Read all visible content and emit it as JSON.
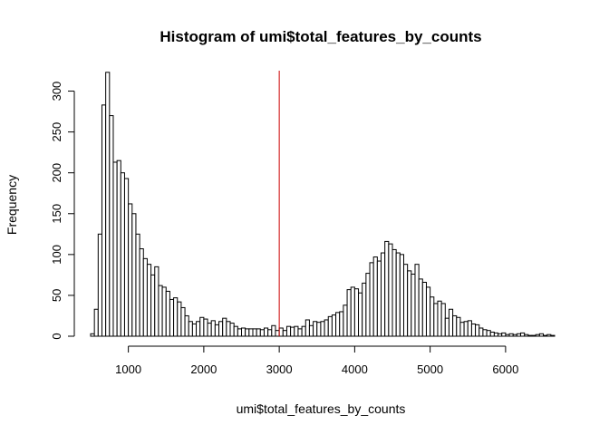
{
  "chart_data": {
    "type": "bar",
    "histogram": true,
    "title": "Histogram of umi$total_features_by_counts",
    "xlabel": "umi$total_features_by_counts",
    "ylabel": "Frequency",
    "xlim": [
      500,
      6650
    ],
    "ylim": [
      0,
      325
    ],
    "bin_start": 500,
    "bin_width": 50,
    "values": [
      3,
      33,
      125,
      283,
      323,
      270,
      213,
      215,
      200,
      193,
      162,
      150,
      125,
      107,
      95,
      88,
      75,
      85,
      62,
      60,
      55,
      45,
      47,
      42,
      35,
      25,
      18,
      15,
      18,
      23,
      21,
      16,
      19,
      14,
      18,
      22,
      18,
      16,
      12,
      9,
      10,
      9,
      9,
      9,
      9,
      8,
      10,
      8,
      13,
      7,
      10,
      7,
      12,
      11,
      12,
      9,
      12,
      20,
      13,
      18,
      17,
      18,
      20,
      24,
      26,
      29,
      30,
      38,
      57,
      60,
      58,
      53,
      65,
      77,
      90,
      97,
      92,
      102,
      116,
      113,
      106,
      102,
      100,
      88,
      80,
      76,
      88,
      70,
      66,
      60,
      48,
      40,
      43,
      40,
      22,
      33,
      25,
      23,
      17,
      18,
      19,
      15,
      14,
      10,
      8,
      7,
      5,
      4,
      3,
      4,
      2,
      3,
      2,
      3,
      4,
      2,
      1,
      1,
      2,
      3,
      1,
      2,
      1
    ],
    "xticks": [
      1000,
      2000,
      3000,
      4000,
      5000,
      6000
    ],
    "yticks": [
      0,
      50,
      100,
      150,
      200,
      250,
      300
    ],
    "vline": {
      "x": 3000,
      "color": "#cc0000"
    },
    "bar_fill": "#ffffff",
    "bar_stroke": "#000000"
  }
}
